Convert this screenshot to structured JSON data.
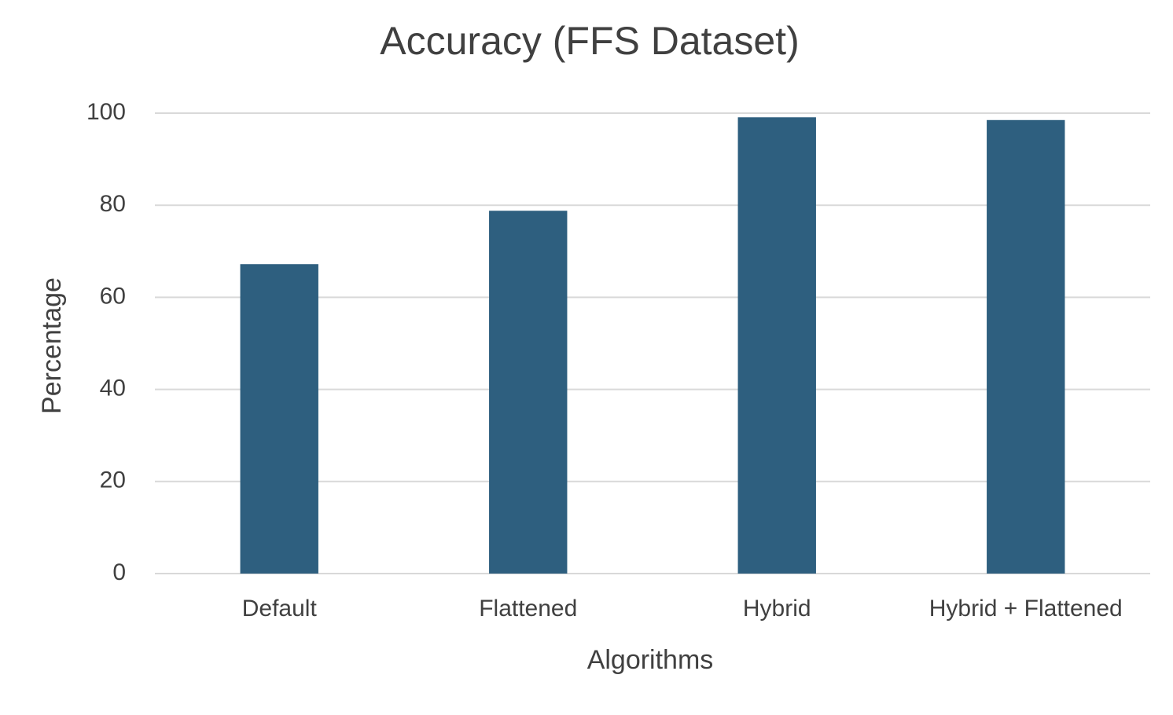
{
  "chart_data": {
    "type": "bar",
    "title": "Accuracy (FFS Dataset)",
    "x_label": "Algorithms",
    "y_label": "Percentage",
    "categories": [
      "Default",
      "Flattened",
      "Hybrid",
      "Hybrid + Flattened"
    ],
    "values": [
      67.2,
      78.8,
      99.1,
      98.5
    ],
    "color": "#2e5f7f",
    "ylim": [
      0,
      100
    ],
    "yticks": [
      0,
      20,
      40,
      60,
      80,
      100
    ],
    "grid": true
  }
}
